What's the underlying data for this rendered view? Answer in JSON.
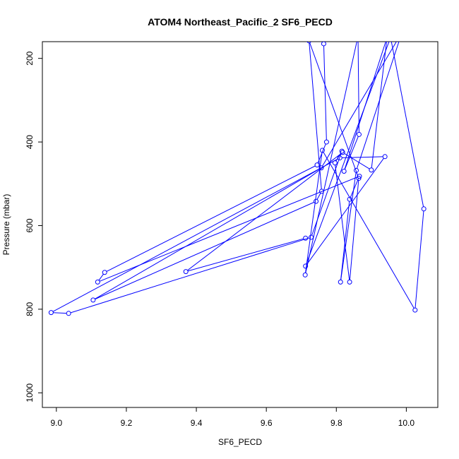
{
  "chart_data": {
    "type": "line",
    "title": "ATOM4 Northeast_Pacific_2 SF6_PECD",
    "xlabel": "SF6_PECD",
    "ylabel": "Pressure (mbar)",
    "xlim": [
      8.96,
      10.09
    ],
    "ylim": [
      1035,
      160
    ],
    "y_reversed": true,
    "x_ticks": [
      9.0,
      9.2,
      9.4,
      9.6,
      9.8,
      10.0
    ],
    "x_tick_labels": [
      "9.0",
      "9.2",
      "9.4",
      "9.6",
      "9.8",
      "10.0"
    ],
    "y_ticks": [
      200,
      400,
      600,
      800,
      1000
    ],
    "y_tick_labels": [
      "200",
      "400",
      "600",
      "800",
      "1000"
    ],
    "grid": false,
    "series": [
      {
        "color": "#0000ff",
        "marker": "open-circle",
        "points": [
          [
            9.764,
            165
          ],
          [
            9.772,
            400
          ],
          [
            9.745,
            455
          ],
          [
            9.138,
            712
          ],
          [
            9.118,
            735
          ],
          [
            9.866,
            482
          ],
          [
            9.838,
            537
          ],
          [
            9.812,
            735
          ],
          [
            9.857,
            468
          ],
          [
            9.988,
            137
          ],
          [
            9.757,
            462
          ],
          [
            9.105,
            778
          ],
          [
            9.742,
            542
          ],
          [
            9.758,
            518
          ],
          [
            9.722,
            158
          ],
          [
            9.864,
            487
          ],
          [
            9.838,
            735
          ],
          [
            9.796,
            450
          ],
          [
            9.816,
            422
          ],
          [
            9.728,
            628
          ],
          [
            9.035,
            810
          ],
          [
            8.985,
            808
          ],
          [
            9.81,
            438
          ],
          [
            9.939,
            435
          ],
          [
            9.712,
            697
          ],
          [
            9.955,
            150
          ],
          [
            10.05,
            560
          ],
          [
            10.025,
            802
          ],
          [
            9.76,
            420
          ],
          [
            9.711,
            718
          ],
          [
            9.862,
            147
          ],
          [
            9.865,
            382
          ],
          [
            9.822,
            470
          ],
          [
            9.945,
            150
          ],
          [
            9.9,
            467
          ],
          [
            9.818,
            425
          ],
          [
            9.37,
            710
          ],
          [
            9.712,
            630
          ]
        ]
      }
    ]
  }
}
